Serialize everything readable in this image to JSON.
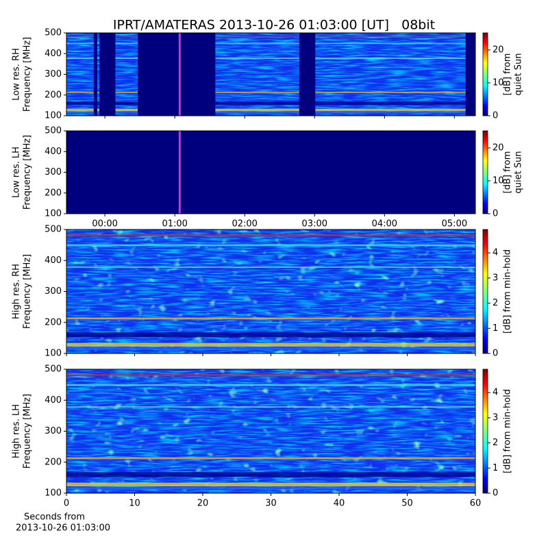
{
  "chart_data": [
    {
      "type": "spectrogram",
      "title": "IPRT/AMATERAS 2013-10-26 01:03:00 [UT]   08bit",
      "ylabel": [
        "Low res. RH",
        "Frequency [MHz]"
      ],
      "xlim": [
        -0.55,
        5.3
      ],
      "xticks": [
        0,
        1,
        2,
        3,
        4,
        5
      ],
      "ylim": [
        100,
        500
      ],
      "yticks": [
        100,
        200,
        300,
        400,
        500
      ],
      "gaps": [
        [
          -0.16,
          -0.11
        ],
        [
          -0.08,
          0.15
        ],
        [
          0.47,
          1.58
        ],
        [
          2.78,
          3.01
        ],
        [
          5.16,
          5.3
        ]
      ],
      "marker_x": 1.07,
      "marker_color": "#cc33cc",
      "colormap": "jet",
      "colorbar": {
        "label": [
          "[dB] from",
          "quiet Sun"
        ],
        "lim": [
          0,
          25.2
        ],
        "ticks": [
          0,
          10,
          20
        ]
      }
    },
    {
      "type": "spectrogram",
      "ylabel": [
        "Low res. LH",
        "Frequency [MHz]"
      ],
      "xlim": [
        -0.55,
        5.3
      ],
      "xticks": [
        {
          "value": 0,
          "label": "00:00"
        },
        {
          "value": 1,
          "label": "01:00"
        },
        {
          "value": 2,
          "label": "02:00"
        },
        {
          "value": 3,
          "label": "03:00"
        },
        {
          "value": 4,
          "label": "04:00"
        },
        {
          "value": 5,
          "label": "05:00"
        }
      ],
      "ylim": [
        100,
        500
      ],
      "yticks": [
        100,
        200,
        300,
        400,
        500
      ],
      "gaps": [
        [
          -0.55,
          5.3
        ]
      ],
      "marker_x": 1.07,
      "marker_color": "#cc33cc",
      "colormap": "jet",
      "colorbar": {
        "label": [
          "[dB] from",
          "quiet Sun"
        ],
        "lim": [
          0,
          25.2
        ],
        "ticks": [
          0,
          10,
          20
        ]
      }
    },
    {
      "type": "spectrogram",
      "ylabel": [
        "High res. RH",
        "Frequency [MHz]"
      ],
      "xlim": [
        0,
        60
      ],
      "xticks": [
        0,
        10,
        20,
        30,
        40,
        50,
        60
      ],
      "ylim": [
        100,
        500
      ],
      "yticks": [
        100,
        200,
        300,
        400,
        500
      ],
      "colormap": "jet",
      "colorbar": {
        "label": [
          "[dB] from min-hold"
        ],
        "lim": [
          0,
          4.93
        ],
        "ticks": [
          0,
          1,
          2,
          3,
          4
        ]
      }
    },
    {
      "type": "spectrogram",
      "ylabel": [
        "High res. LH",
        "Frequency [MHz]"
      ],
      "xlabel": [
        "Seconds from",
        "2013-10-26 01:03:00"
      ],
      "xlim": [
        0,
        60
      ],
      "xticks": [
        0,
        10,
        20,
        30,
        40,
        50,
        60
      ],
      "ylim": [
        100,
        500
      ],
      "yticks": [
        100,
        200,
        300,
        400,
        500
      ],
      "colormap": "jet",
      "colorbar": {
        "label": [
          "[dB] from min-hold"
        ],
        "lim": [
          0,
          4.93
        ],
        "ticks": [
          0,
          1,
          2,
          3,
          4
        ]
      }
    }
  ]
}
